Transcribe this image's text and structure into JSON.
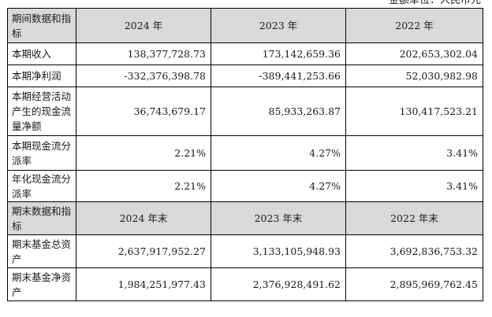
{
  "unit_note": "金额单位：人民币元",
  "section1": {
    "header_label": "期间数据和指标",
    "columns": [
      "2024 年",
      "2023 年",
      "2022 年"
    ],
    "rows": [
      {
        "label": "本期收入",
        "values": [
          "138,377,728.73",
          "173,142,659.36",
          "202,653,302.04"
        ]
      },
      {
        "label": "本期净利润",
        "values": [
          "-332,376,398.78",
          "-389,441,253.66",
          "52,030,982.98"
        ]
      },
      {
        "label": "本期经营活动产生的现金流量净额",
        "values": [
          "36,743,679.17",
          "85,933,263.87",
          "130,417,523.21"
        ]
      },
      {
        "label": "本期现金流分派率",
        "values": [
          "2.21%",
          "4.27%",
          "3.41%"
        ]
      },
      {
        "label": "年化现金流分派率",
        "values": [
          "2.21%",
          "4.27%",
          "3.41%"
        ]
      }
    ]
  },
  "section2": {
    "header_label": "期末数据和指标",
    "columns": [
      "2024 年末",
      "2023 年末",
      "2022 年末"
    ],
    "rows": [
      {
        "label": "期末基金总资产",
        "values": [
          "2,637,917,952.27",
          "3,133,105,948.93",
          "3,692,836,753.32"
        ]
      },
      {
        "label": "期末基金净资产",
        "values": [
          "1,984,251,977.43",
          "2,376,928,491.62",
          "2,895,969,762.45"
        ]
      }
    ]
  }
}
